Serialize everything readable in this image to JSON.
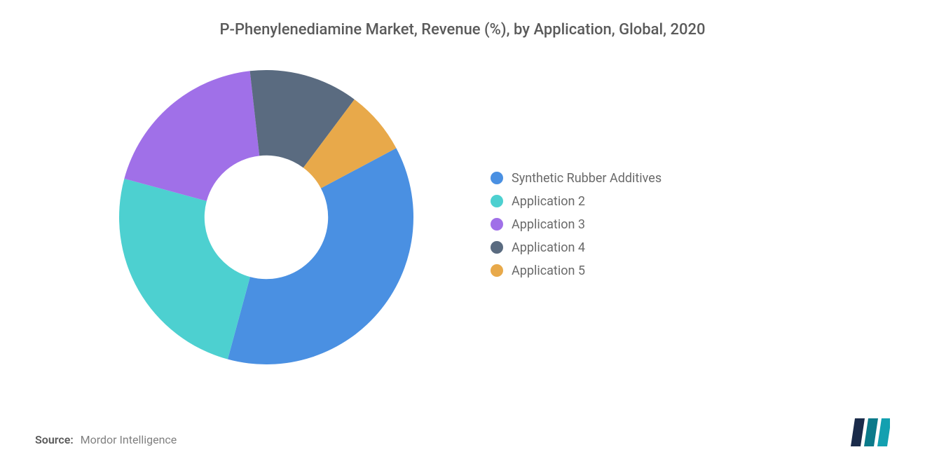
{
  "title": "P-Phenylenediamine Market, Revenue (%), by Application, Global, 2020",
  "chart": {
    "type": "donut",
    "inner_radius_ratio": 0.42,
    "start_angle_deg": 332,
    "slices": [
      {
        "label": "Synthetic Rubber Additives",
        "value": 37,
        "color": "#4a90e2"
      },
      {
        "label": "Application 2",
        "value": 25,
        "color": "#4dd0d0"
      },
      {
        "label": "Application 3",
        "value": 19,
        "color": "#a070e8"
      },
      {
        "label": "Application 4",
        "value": 12,
        "color": "#5a6b80"
      },
      {
        "label": "Application 5",
        "value": 7,
        "color": "#e8a94a"
      }
    ],
    "background_color": "#ffffff"
  },
  "legend": {
    "items": [
      {
        "label": "Synthetic Rubber Additives",
        "color": "#4a90e2"
      },
      {
        "label": "Application 2",
        "color": "#4dd0d0"
      },
      {
        "label": "Application 3",
        "color": "#a070e8"
      },
      {
        "label": "Application 4",
        "color": "#5a6b80"
      },
      {
        "label": "Application 5",
        "color": "#e8a94a"
      }
    ]
  },
  "source": {
    "label": "Source:",
    "text": "Mordor Intelligence"
  },
  "logo": {
    "name": "mordor-logo",
    "bar_colors": [
      "#1a2b4a",
      "#0b7a8a",
      "#13a0b0"
    ]
  }
}
